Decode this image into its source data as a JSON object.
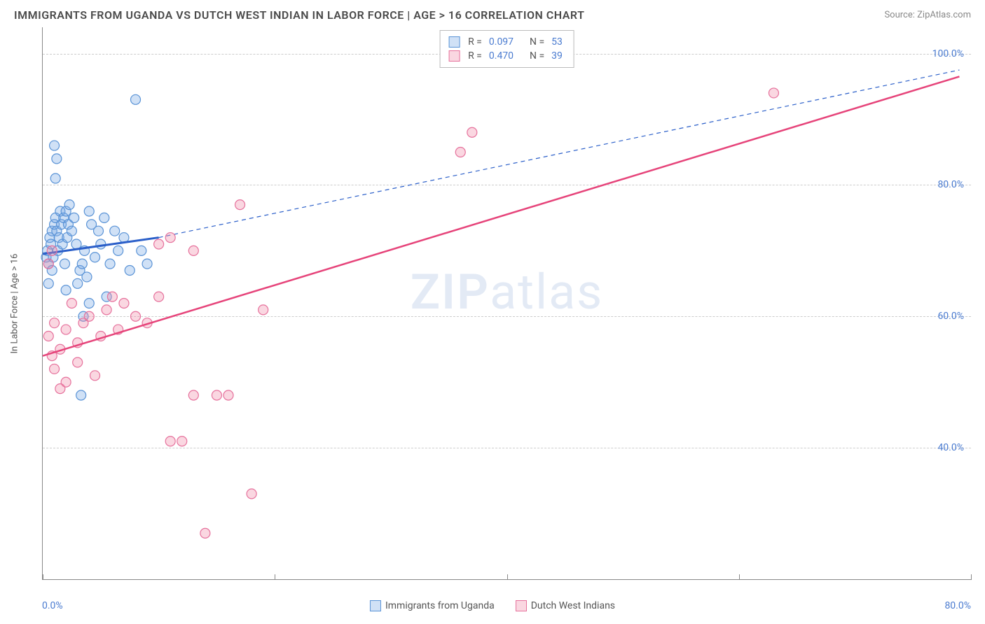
{
  "header": {
    "title": "IMMIGRANTS FROM UGANDA VS DUTCH WEST INDIAN IN LABOR FORCE | AGE > 16 CORRELATION CHART",
    "source_label": "Source:",
    "source_name": "ZipAtlas.com"
  },
  "chart": {
    "type": "scatter",
    "ylabel": "In Labor Force | Age > 16",
    "xlim": [
      0,
      80
    ],
    "ylim": [
      20,
      104
    ],
    "x_ticks": [
      0,
      20,
      40,
      60,
      80
    ],
    "x_tick_labels": {
      "0": "0.0%",
      "80": "80.0%"
    },
    "y_gridlines": [
      40,
      60,
      80,
      100
    ],
    "y_labels": {
      "40": "40.0%",
      "60": "60.0%",
      "80": "80.0%",
      "100": "100.0%"
    },
    "grid_color": "#cccccc",
    "axis_color": "#888888",
    "background": "#ffffff",
    "marker_radius": 7,
    "marker_stroke_width": 1.2,
    "watermark": {
      "bold": "ZIP",
      "rest": "atlas"
    },
    "series": [
      {
        "id": "uganda",
        "label": "Immigrants from Uganda",
        "fill": "rgba(120,170,230,0.35)",
        "stroke": "#5a93d6",
        "r": 0.097,
        "n": 53,
        "trend": {
          "solid": {
            "x1": 0,
            "y1": 69.5,
            "x2": 10,
            "y2": 72.0,
            "color": "#2b5fc9",
            "width": 3
          },
          "dashed": {
            "x1": 10,
            "y1": 72.0,
            "x2": 79,
            "y2": 97.5,
            "color": "#2b5fc9",
            "width": 1.2,
            "dash": "6,5"
          }
        },
        "points": [
          [
            0.3,
            69
          ],
          [
            0.4,
            70
          ],
          [
            0.5,
            68
          ],
          [
            0.6,
            72
          ],
          [
            0.7,
            71
          ],
          [
            0.8,
            73
          ],
          [
            0.9,
            69
          ],
          [
            1.0,
            74
          ],
          [
            1.1,
            75
          ],
          [
            1.2,
            73
          ],
          [
            1.3,
            70
          ],
          [
            1.4,
            72
          ],
          [
            1.5,
            76
          ],
          [
            1.6,
            74
          ],
          [
            1.7,
            71
          ],
          [
            1.8,
            75
          ],
          [
            1.9,
            68
          ],
          [
            2.0,
            76
          ],
          [
            2.1,
            72
          ],
          [
            2.2,
            74
          ],
          [
            2.3,
            77
          ],
          [
            2.5,
            73
          ],
          [
            2.7,
            75
          ],
          [
            2.9,
            71
          ],
          [
            3.0,
            65
          ],
          [
            3.2,
            67
          ],
          [
            3.4,
            68
          ],
          [
            3.6,
            70
          ],
          [
            3.8,
            66
          ],
          [
            4.0,
            76
          ],
          [
            4.2,
            74
          ],
          [
            4.5,
            69
          ],
          [
            5.0,
            71
          ],
          [
            5.3,
            75
          ],
          [
            5.5,
            63
          ],
          [
            5.8,
            68
          ],
          [
            6.2,
            73
          ],
          [
            6.5,
            70
          ],
          [
            1.0,
            86
          ],
          [
            1.1,
            81
          ],
          [
            1.2,
            84
          ],
          [
            8.0,
            93
          ],
          [
            4.0,
            62
          ],
          [
            3.5,
            60
          ],
          [
            2.0,
            64
          ],
          [
            7.0,
            72
          ],
          [
            7.5,
            67
          ],
          [
            8.5,
            70
          ],
          [
            9.0,
            68
          ],
          [
            4.8,
            73
          ],
          [
            3.3,
            48
          ],
          [
            0.5,
            65
          ],
          [
            0.8,
            67
          ]
        ]
      },
      {
        "id": "dutch",
        "label": "Dutch West Indians",
        "fill": "rgba(240,140,170,0.35)",
        "stroke": "#e6719c",
        "r": 0.47,
        "n": 39,
        "trend": {
          "solid": {
            "x1": 0,
            "y1": 54.0,
            "x2": 79,
            "y2": 96.5,
            "color": "#e6447a",
            "width": 2.5
          }
        },
        "points": [
          [
            0.5,
            57
          ],
          [
            1.0,
            59
          ],
          [
            1.5,
            55
          ],
          [
            2.0,
            58
          ],
          [
            2.5,
            62
          ],
          [
            3.0,
            56
          ],
          [
            3.5,
            59
          ],
          [
            4.0,
            60
          ],
          [
            5.0,
            57
          ],
          [
            5.5,
            61
          ],
          [
            6.0,
            63
          ],
          [
            6.5,
            58
          ],
          [
            7.0,
            62
          ],
          [
            8.0,
            60
          ],
          [
            9.0,
            59
          ],
          [
            10,
            63
          ],
          [
            1.0,
            52
          ],
          [
            2.0,
            50
          ],
          [
            3.0,
            53
          ],
          [
            4.5,
            51
          ],
          [
            1.5,
            49
          ],
          [
            0.8,
            54
          ],
          [
            13,
            48
          ],
          [
            15,
            48
          ],
          [
            16,
            48
          ],
          [
            11,
            41
          ],
          [
            12,
            41
          ],
          [
            18,
            33
          ],
          [
            14,
            27
          ],
          [
            10,
            71
          ],
          [
            11,
            72
          ],
          [
            13,
            70
          ],
          [
            17,
            77
          ],
          [
            19,
            61
          ],
          [
            36,
            85
          ],
          [
            37,
            88
          ],
          [
            63,
            94
          ],
          [
            0.5,
            68
          ],
          [
            0.8,
            70
          ]
        ]
      }
    ]
  },
  "legend_top": {
    "r_label": "R =",
    "n_label": "N ="
  }
}
